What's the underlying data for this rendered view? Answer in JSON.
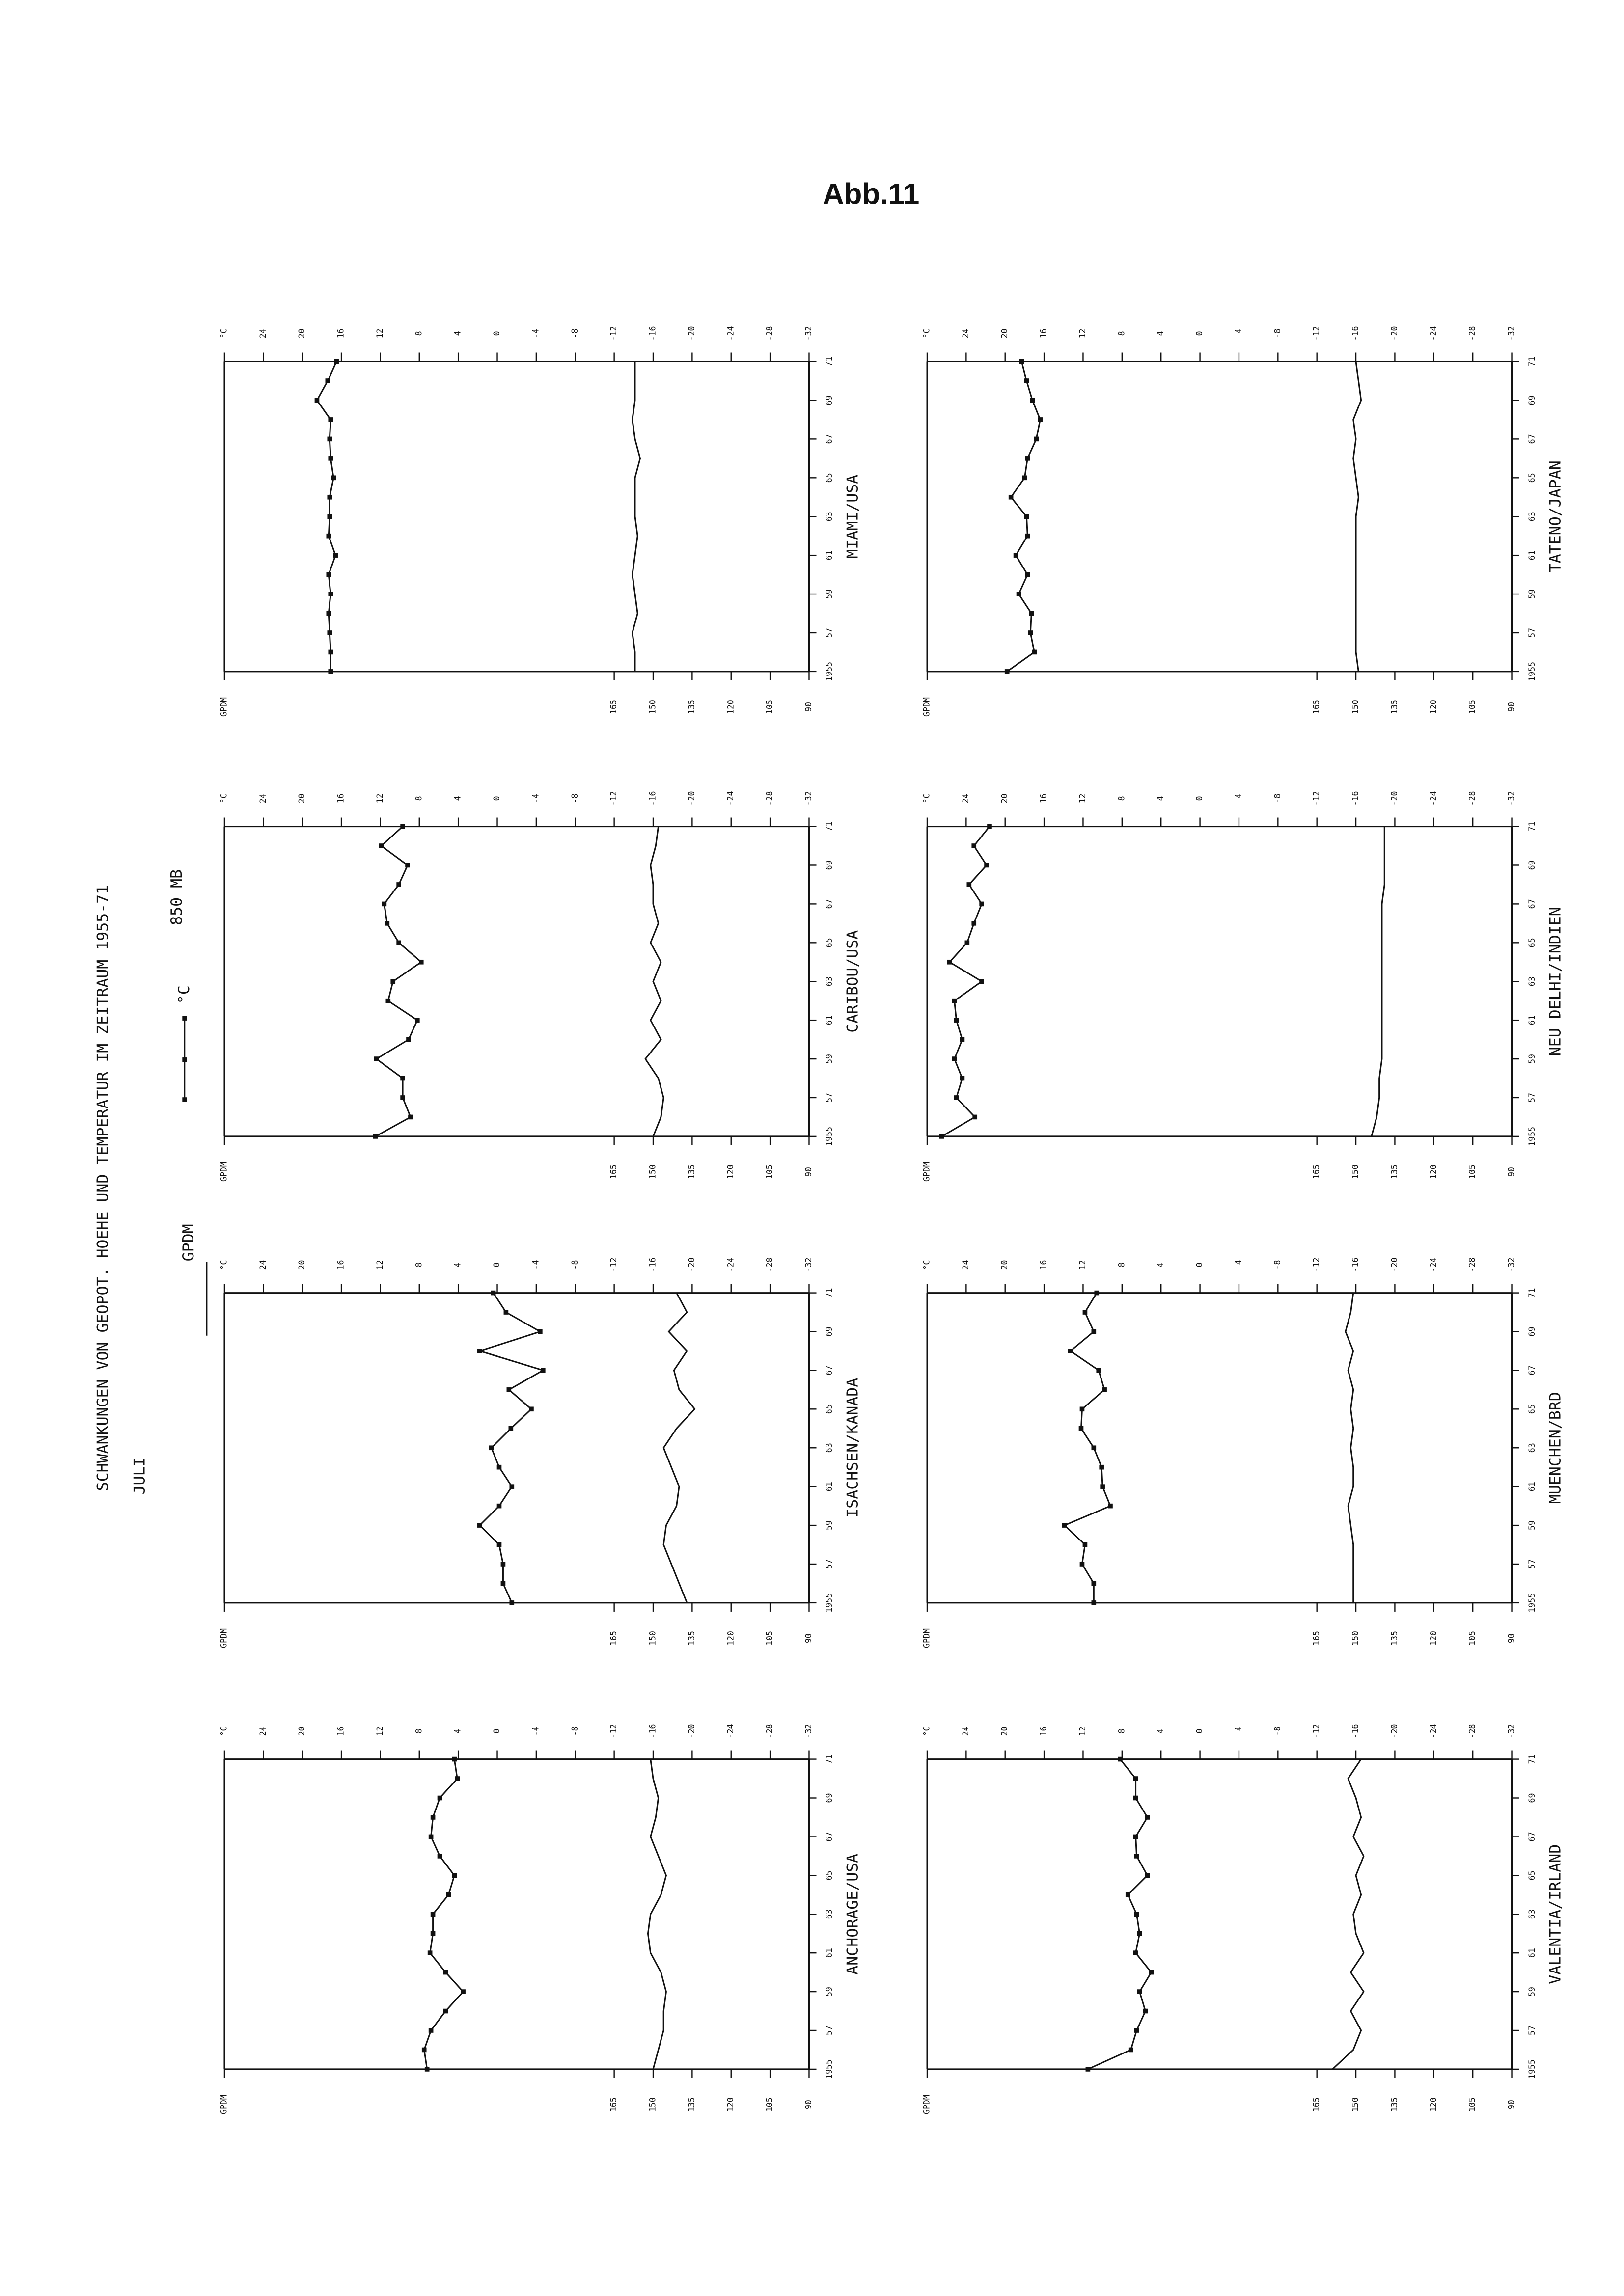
{
  "header": {
    "figure": "Abb.11",
    "title": "SCHWANKUNGEN VON GEOPOT. HOEHE UND TEMPERATUR IM ZEITRAUM 1955-71",
    "month": "JULI",
    "level": "850 MB"
  },
  "chart_data": [
    {
      "type": "line",
      "title": "ANCHORAGE/USA",
      "x": [
        1955,
        1956,
        1957,
        1958,
        1959,
        1960,
        1961,
        1962,
        1963,
        1964,
        1965,
        1966,
        1967,
        1968,
        1969,
        1970,
        1971
      ],
      "xlim": [
        1955,
        1971
      ],
      "xticks": [
        1955,
        {
          "value": 1957,
          "label": "57"
        },
        {
          "value": 1959,
          "label": "59"
        },
        {
          "value": 1961,
          "label": "61"
        },
        {
          "value": 1963,
          "label": "63"
        },
        {
          "value": 1965,
          "label": "65"
        },
        {
          "value": 1967,
          "label": "67"
        },
        {
          "value": 1969,
          "label": "69"
        },
        {
          "value": 1971,
          "label": "71"
        }
      ],
      "series": [
        {
          "name": "°C",
          "color": "#111111",
          "marker": "square",
          "values": [
            7.2,
            7.5,
            6.8,
            5.3,
            3.5,
            5.3,
            6.9,
            6.6,
            6.6,
            5.0,
            4.4,
            5.9,
            6.8,
            6.6,
            5.9,
            4.1,
            4.4
          ]
        },
        {
          "name": "GPDM",
          "color": "#111111",
          "axis": "y2",
          "values": [
            150,
            148,
            146,
            146,
            145,
            147,
            151,
            152,
            151,
            147,
            145,
            148,
            151,
            149,
            148,
            150,
            151
          ]
        }
      ],
      "ylim": [
        28,
        -32
      ],
      "yticks": [
        {
          "value": 28,
          "label": "°C"
        },
        24,
        20,
        16,
        12,
        8,
        4,
        0,
        -4,
        -8,
        -12,
        -16,
        -20,
        -24,
        -28,
        -32
      ],
      "y2lim": [
        315,
        90
      ],
      "y2ticks": [
        {
          "value": 315,
          "label": "GPDM"
        },
        165,
        150,
        135,
        120,
        105,
        90
      ]
    },
    {
      "type": "line",
      "title": "ISACHSEN/KANADA",
      "x": [
        1955,
        1956,
        1957,
        1958,
        1959,
        1960,
        1961,
        1962,
        1963,
        1964,
        1965,
        1966,
        1967,
        1968,
        1969,
        1970,
        1971
      ],
      "xlim": [
        1955,
        1971
      ],
      "xticks": [
        1955,
        {
          "value": 1957,
          "label": "57"
        },
        {
          "value": 1959,
          "label": "59"
        },
        {
          "value": 1961,
          "label": "61"
        },
        {
          "value": 1963,
          "label": "63"
        },
        {
          "value": 1965,
          "label": "65"
        },
        {
          "value": 1967,
          "label": "67"
        },
        {
          "value": 1969,
          "label": "69"
        },
        {
          "value": 1971,
          "label": "71"
        }
      ],
      "series": [
        {
          "name": "°C",
          "color": "#111111",
          "marker": "square",
          "values": [
            -1.5,
            -0.6,
            -0.6,
            -0.2,
            1.8,
            -0.2,
            -1.5,
            -0.2,
            0.6,
            -1.4,
            -3.5,
            -1.2,
            -4.7,
            1.8,
            -4.4,
            -0.9,
            0.4
          ]
        },
        {
          "name": "GPDM",
          "color": "#111111",
          "axis": "y2",
          "values": [
            137,
            140,
            143,
            146,
            145,
            141,
            140,
            143,
            146,
            141,
            134,
            140,
            142,
            137,
            144,
            137,
            141
          ]
        }
      ],
      "ylim": [
        28,
        -32
      ],
      "yticks": [
        {
          "value": 28,
          "label": "°C"
        },
        24,
        20,
        16,
        12,
        8,
        4,
        0,
        -4,
        -8,
        -12,
        -16,
        -20,
        -24,
        -28,
        -32
      ],
      "y2lim": [
        315,
        90
      ],
      "y2ticks": [
        {
          "value": 315,
          "label": "GPDM"
        },
        165,
        150,
        135,
        120,
        105,
        90
      ]
    },
    {
      "type": "line",
      "title": "CARIBOU/USA",
      "x": [
        1955,
        1956,
        1957,
        1958,
        1959,
        1960,
        1961,
        1962,
        1963,
        1964,
        1965,
        1966,
        1967,
        1968,
        1969,
        1970,
        1971
      ],
      "xlim": [
        1955,
        1971
      ],
      "xticks": [
        1955,
        {
          "value": 1957,
          "label": "57"
        },
        {
          "value": 1959,
          "label": "59"
        },
        {
          "value": 1961,
          "label": "61"
        },
        {
          "value": 1963,
          "label": "63"
        },
        {
          "value": 1965,
          "label": "65"
        },
        {
          "value": 1967,
          "label": "67"
        },
        {
          "value": 1969,
          "label": "69"
        },
        {
          "value": 1971,
          "label": "71"
        }
      ],
      "series": [
        {
          "name": "°C",
          "color": "#111111",
          "marker": "square",
          "values": [
            12.5,
            8.9,
            9.7,
            9.7,
            12.4,
            9.1,
            8.2,
            11.2,
            10.7,
            7.8,
            10.1,
            11.3,
            11.6,
            10.1,
            9.2,
            11.9,
            9.7
          ]
        },
        {
          "name": "GPDM",
          "color": "#111111",
          "axis": "y2",
          "values": [
            150,
            147,
            146,
            148,
            153,
            147,
            151,
            147,
            150,
            147,
            151,
            148,
            150,
            150,
            151,
            149,
            148
          ]
        }
      ],
      "ylim": [
        28,
        -32
      ],
      "yticks": [
        {
          "value": 28,
          "label": "°C"
        },
        24,
        20,
        16,
        12,
        8,
        4,
        0,
        -4,
        -8,
        -12,
        -16,
        -20,
        -24,
        -28,
        -32
      ],
      "y2lim": [
        315,
        90
      ],
      "y2ticks": [
        {
          "value": 315,
          "label": "GPDM"
        },
        165,
        150,
        135,
        120,
        105,
        90
      ]
    },
    {
      "type": "line",
      "title": "MIAMI/USA",
      "x": [
        1955,
        1956,
        1957,
        1958,
        1959,
        1960,
        1961,
        1962,
        1963,
        1964,
        1965,
        1966,
        1967,
        1968,
        1969,
        1970,
        1971
      ],
      "xlim": [
        1955,
        1971
      ],
      "xticks": [
        1955,
        {
          "value": 1957,
          "label": "57"
        },
        {
          "value": 1959,
          "label": "59"
        },
        {
          "value": 1961,
          "label": "61"
        },
        {
          "value": 1963,
          "label": "63"
        },
        {
          "value": 1965,
          "label": "65"
        },
        {
          "value": 1967,
          "label": "67"
        },
        {
          "value": 1969,
          "label": "69"
        },
        {
          "value": 1971,
          "label": "71"
        }
      ],
      "series": [
        {
          "name": "°C",
          "color": "#111111",
          "marker": "square",
          "values": [
            17.1,
            17.1,
            17.2,
            17.3,
            17.1,
            17.3,
            16.6,
            17.3,
            17.2,
            17.2,
            16.8,
            17.1,
            17.2,
            17.1,
            18.5,
            17.4,
            16.5
          ]
        },
        {
          "name": "GPDM",
          "color": "#111111",
          "axis": "y2",
          "values": [
            157,
            157,
            158,
            156,
            157,
            158,
            157,
            156,
            157,
            157,
            157,
            155,
            157,
            158,
            157,
            157,
            157
          ]
        }
      ],
      "ylim": [
        28,
        -32
      ],
      "yticks": [
        {
          "value": 28,
          "label": "°C"
        },
        24,
        20,
        16,
        12,
        8,
        4,
        0,
        -4,
        -8,
        -12,
        -16,
        -20,
        -24,
        -28,
        -32
      ],
      "y2lim": [
        315,
        90
      ],
      "y2ticks": [
        {
          "value": 315,
          "label": "GPDM"
        },
        165,
        150,
        135,
        120,
        105,
        90
      ]
    },
    {
      "type": "line",
      "title": "VALENTIA/IRLAND",
      "x": [
        1955,
        1956,
        1957,
        1958,
        1959,
        1960,
        1961,
        1962,
        1963,
        1964,
        1965,
        1966,
        1967,
        1968,
        1969,
        1970,
        1971
      ],
      "xlim": [
        1955,
        1971
      ],
      "xticks": [
        1955,
        {
          "value": 1957,
          "label": "57"
        },
        {
          "value": 1959,
          "label": "59"
        },
        {
          "value": 1961,
          "label": "61"
        },
        {
          "value": 1963,
          "label": "63"
        },
        {
          "value": 1965,
          "label": "65"
        },
        {
          "value": 1967,
          "label": "67"
        },
        {
          "value": 1969,
          "label": "69"
        },
        {
          "value": 1971,
          "label": "71"
        }
      ],
      "series": [
        {
          "name": "°C",
          "color": "#111111",
          "marker": "square",
          "values": [
            11.5,
            7.1,
            6.5,
            5.6,
            6.2,
            5.0,
            6.6,
            6.2,
            6.5,
            7.4,
            5.4,
            6.5,
            6.6,
            5.4,
            6.6,
            6.6,
            8.2
          ]
        },
        {
          "name": "GPDM",
          "color": "#111111",
          "axis": "y2",
          "values": [
            159,
            151,
            148,
            152,
            147,
            152,
            147,
            150,
            151,
            148,
            150,
            147,
            151,
            148,
            150,
            153,
            148
          ]
        }
      ],
      "ylim": [
        28,
        -32
      ],
      "yticks": [
        {
          "value": 28,
          "label": "°C"
        },
        24,
        20,
        16,
        12,
        8,
        4,
        0,
        -4,
        -8,
        -12,
        -16,
        -20,
        -24,
        -28,
        -32
      ],
      "y2lim": [
        315,
        90
      ],
      "y2ticks": [
        {
          "value": 315,
          "label": "GPDM"
        },
        165,
        150,
        135,
        120,
        105,
        90
      ]
    },
    {
      "type": "line",
      "title": "MUENCHEN/BRD",
      "x": [
        1955,
        1956,
        1957,
        1958,
        1959,
        1960,
        1961,
        1962,
        1963,
        1964,
        1965,
        1966,
        1967,
        1968,
        1969,
        1970,
        1971
      ],
      "xlim": [
        1955,
        1971
      ],
      "xticks": [
        1955,
        {
          "value": 1957,
          "label": "57"
        },
        {
          "value": 1959,
          "label": "59"
        },
        {
          "value": 1961,
          "label": "61"
        },
        {
          "value": 1963,
          "label": "63"
        },
        {
          "value": 1965,
          "label": "65"
        },
        {
          "value": 1967,
          "label": "67"
        },
        {
          "value": 1969,
          "label": "69"
        },
        {
          "value": 1971,
          "label": "71"
        }
      ],
      "series": [
        {
          "name": "°C",
          "color": "#111111",
          "marker": "square",
          "values": [
            10.9,
            10.9,
            12.1,
            11.8,
            13.9,
            9.2,
            10.0,
            10.1,
            10.9,
            12.2,
            12.1,
            9.8,
            10.4,
            13.3,
            10.9,
            11.8,
            10.6
          ]
        },
        {
          "name": "GPDM",
          "color": "#111111",
          "axis": "y2",
          "values": [
            151,
            151,
            151,
            151,
            152,
            153,
            151,
            151,
            152,
            151,
            152,
            151,
            153,
            151,
            154,
            152,
            151
          ]
        }
      ],
      "ylim": [
        28,
        -32
      ],
      "yticks": [
        {
          "value": 28,
          "label": "°C"
        },
        24,
        20,
        16,
        12,
        8,
        4,
        0,
        -4,
        -8,
        -12,
        -16,
        -20,
        -24,
        -28,
        -32
      ],
      "y2lim": [
        315,
        90
      ],
      "y2ticks": [
        {
          "value": 315,
          "label": "GPDM"
        },
        165,
        150,
        135,
        120,
        105,
        90
      ]
    },
    {
      "type": "line",
      "title": "NEU DELHI/INDIEN",
      "x": [
        1955,
        1956,
        1957,
        1958,
        1959,
        1960,
        1961,
        1962,
        1963,
        1964,
        1965,
        1966,
        1967,
        1968,
        1969,
        1970,
        1971
      ],
      "xlim": [
        1955,
        1971
      ],
      "xticks": [
        1955,
        {
          "value": 1957,
          "label": "57"
        },
        {
          "value": 1959,
          "label": "59"
        },
        {
          "value": 1961,
          "label": "61"
        },
        {
          "value": 1963,
          "label": "63"
        },
        {
          "value": 1965,
          "label": "65"
        },
        {
          "value": 1967,
          "label": "67"
        },
        {
          "value": 1969,
          "label": "69"
        },
        {
          "value": 1971,
          "label": "71"
        }
      ],
      "series": [
        {
          "name": "°C",
          "color": "#111111",
          "marker": "square",
          "values": [
            26.5,
            23.1,
            25.0,
            24.4,
            25.2,
            24.4,
            25.0,
            25.2,
            22.4,
            25.7,
            23.9,
            23.2,
            22.4,
            23.7,
            21.9,
            23.2,
            21.6
          ]
        },
        {
          "name": "GPDM",
          "color": "#111111",
          "axis": "y2",
          "values": [
            144,
            142,
            141,
            141,
            140,
            140,
            140,
            140,
            140,
            140,
            140,
            140,
            140,
            139,
            139,
            139,
            139
          ]
        }
      ],
      "ylim": [
        28,
        -32
      ],
      "yticks": [
        {
          "value": 28,
          "label": "°C"
        },
        24,
        20,
        16,
        12,
        8,
        4,
        0,
        -4,
        -8,
        -12,
        -16,
        -20,
        -24,
        -28,
        -32
      ],
      "y2lim": [
        315,
        90
      ],
      "y2ticks": [
        {
          "value": 315,
          "label": "GPDM"
        },
        165,
        150,
        135,
        120,
        105,
        90
      ]
    },
    {
      "type": "line",
      "title": "TATENO/JAPAN",
      "x": [
        1955,
        1956,
        1957,
        1958,
        1959,
        1960,
        1961,
        1962,
        1963,
        1964,
        1965,
        1966,
        1967,
        1968,
        1969,
        1970,
        1971
      ],
      "xlim": [
        1955,
        1971
      ],
      "xticks": [
        1955,
        {
          "value": 1957,
          "label": "57"
        },
        {
          "value": 1959,
          "label": "59"
        },
        {
          "value": 1961,
          "label": "61"
        },
        {
          "value": 1963,
          "label": "63"
        },
        {
          "value": 1965,
          "label": "65"
        },
        {
          "value": 1967,
          "label": "67"
        },
        {
          "value": 1969,
          "label": "69"
        },
        {
          "value": 1971,
          "label": "71"
        }
      ],
      "series": [
        {
          "name": "°C",
          "color": "#111111",
          "marker": "square",
          "values": [
            19.8,
            17.0,
            17.4,
            17.3,
            18.6,
            17.7,
            18.9,
            17.7,
            17.8,
            19.4,
            18.0,
            17.7,
            16.8,
            16.4,
            17.2,
            17.8,
            18.3
          ]
        },
        {
          "name": "GPDM",
          "color": "#111111",
          "axis": "y2",
          "values": [
            149,
            150,
            150,
            150,
            150,
            150,
            150,
            150,
            150,
            149,
            150,
            151,
            150,
            151,
            148,
            149,
            150
          ]
        }
      ],
      "ylim": [
        28,
        -32
      ],
      "yticks": [
        {
          "value": 28,
          "label": "°C"
        },
        24,
        20,
        16,
        12,
        8,
        4,
        0,
        -4,
        -8,
        -12,
        -16,
        -20,
        -24,
        -28,
        -32
      ],
      "y2lim": [
        315,
        90
      ],
      "y2ticks": [
        {
          "value": 315,
          "label": "GPDM"
        },
        165,
        150,
        135,
        120,
        105,
        90
      ]
    }
  ]
}
